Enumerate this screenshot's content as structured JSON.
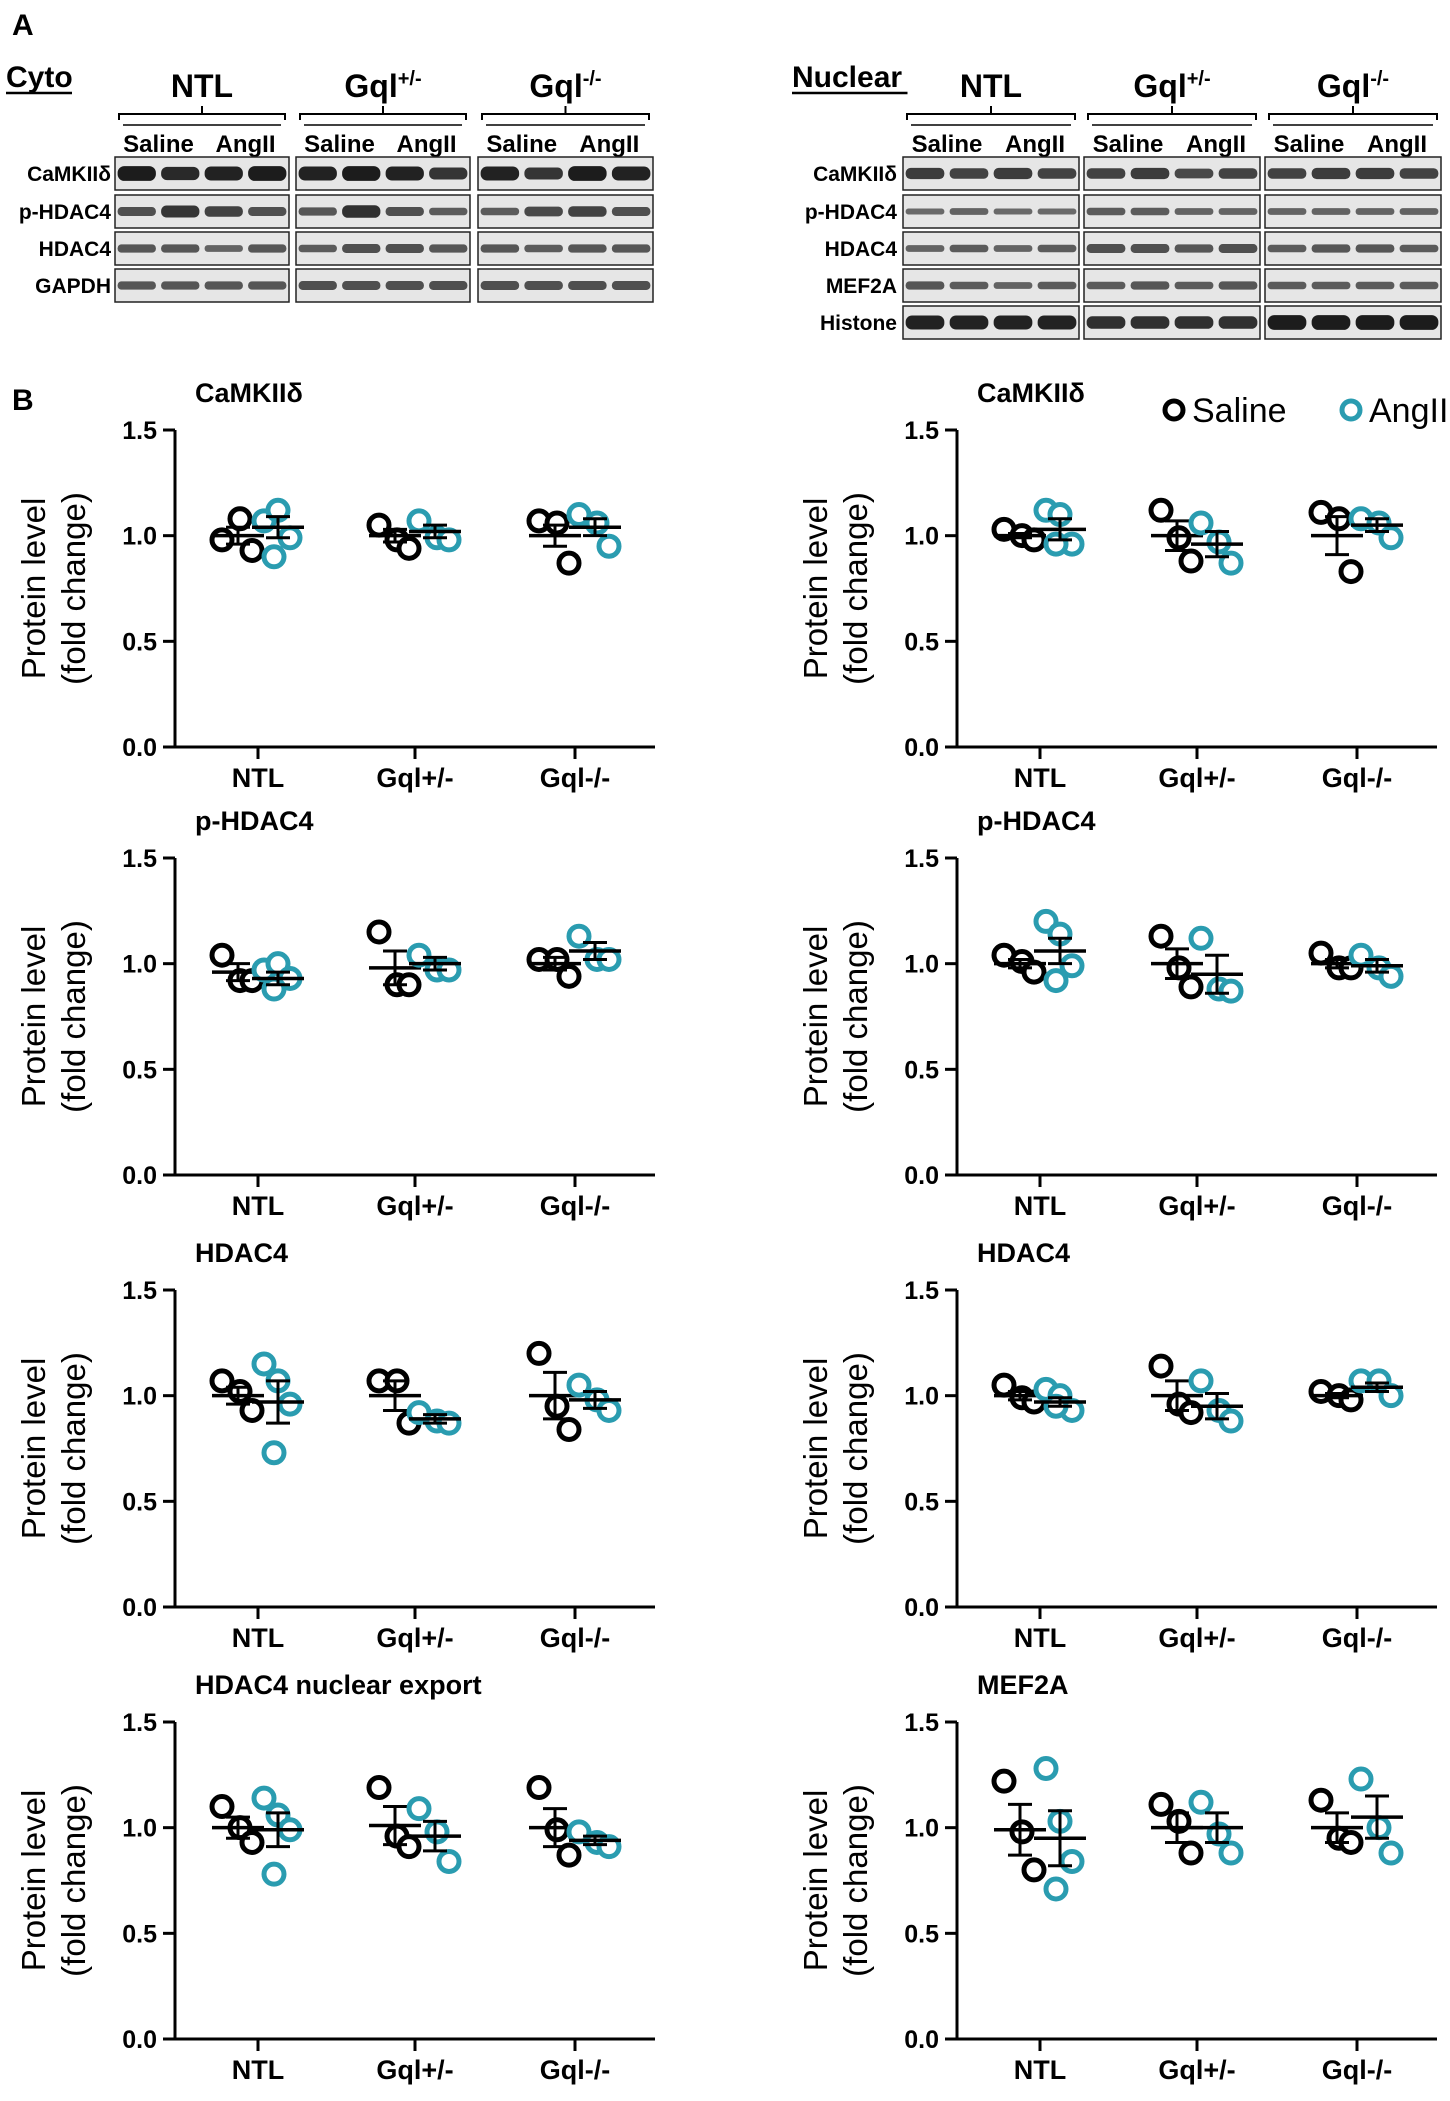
{
  "figure": {
    "panel_a_label": "A",
    "panel_b_label": "B",
    "colors": {
      "saline": "#000000",
      "angii": "#2a9cb0"
    }
  },
  "blots": [
    {
      "section": "Cyto",
      "groups": [
        {
          "name": "NTL",
          "sup": ""
        },
        {
          "name": "Gql",
          "sup": "+/-"
        },
        {
          "name": "Gql",
          "sup": "-/-"
        }
      ],
      "lane_labels": [
        "Saline",
        "AngII"
      ],
      "rows": [
        "CaMKIIδ",
        "p-HDAC4",
        "HDAC4",
        "GAPDH"
      ]
    },
    {
      "section": "Nuclear",
      "groups": [
        {
          "name": "NTL",
          "sup": ""
        },
        {
          "name": "Gql",
          "sup": "+/-"
        },
        {
          "name": "Gql",
          "sup": "-/-"
        }
      ],
      "lane_labels": [
        "Saline",
        "AngII"
      ],
      "rows": [
        "CaMKIIδ",
        "p-HDAC4",
        "HDAC4",
        "MEF2A",
        "Histone"
      ]
    }
  ],
  "legend": [
    {
      "label": "Saline",
      "color": "#000000"
    },
    {
      "label": "AngII",
      "color": "#2a9cb0"
    }
  ],
  "chart_data": [
    {
      "type": "scatter",
      "fraction": "cyto",
      "title": "CaMKIIδ",
      "ylabel": [
        "Protein level",
        "(fold change)"
      ],
      "ylim": [
        0,
        1.5
      ],
      "yticks": [
        "0.0",
        "0.5",
        "1.0",
        "1.5"
      ],
      "categories": [
        "NTL",
        "Gql+/-",
        "Gql-/-"
      ],
      "series": [
        {
          "name": "Saline",
          "groups": [
            {
              "points": [
                0.98,
                1.08,
                0.93
              ],
              "mean": 1.0,
              "sem": 0.04
            },
            {
              "points": [
                1.05,
                0.98,
                0.94
              ],
              "mean": 1.0,
              "sem": 0.03
            },
            {
              "points": [
                1.07,
                1.06,
                0.87
              ],
              "mean": 1.0,
              "sem": 0.05
            }
          ]
        },
        {
          "name": "AngII",
          "groups": [
            {
              "points": [
                1.07,
                1.12,
                0.99,
                0.9
              ],
              "mean": 1.04,
              "sem": 0.05
            },
            {
              "points": [
                1.07,
                0.99,
                0.98
              ],
              "mean": 1.02,
              "sem": 0.03
            },
            {
              "points": [
                1.1,
                1.06,
                0.95
              ],
              "mean": 1.04,
              "sem": 0.04
            }
          ]
        }
      ]
    },
    {
      "type": "scatter",
      "fraction": "nuclear",
      "title": "CaMKIIδ",
      "ylabel": [
        "Protein level",
        "(fold change)"
      ],
      "ylim": [
        0,
        1.5
      ],
      "yticks": [
        "0.0",
        "0.5",
        "1.0",
        "1.5"
      ],
      "categories": [
        "NTL",
        "Gql+/-",
        "Gql-/-"
      ],
      "series": [
        {
          "name": "Saline",
          "groups": [
            {
              "points": [
                1.03,
                1.0,
                0.98
              ],
              "mean": 1.0,
              "sem": 0.01
            },
            {
              "points": [
                1.12,
                0.99,
                0.88
              ],
              "mean": 1.0,
              "sem": 0.07
            },
            {
              "points": [
                1.11,
                1.08,
                0.83
              ],
              "mean": 1.0,
              "sem": 0.09
            }
          ]
        },
        {
          "name": "AngII",
          "groups": [
            {
              "points": [
                1.12,
                1.1,
                0.96,
                0.96
              ],
              "mean": 1.03,
              "sem": 0.05
            },
            {
              "points": [
                1.06,
                0.97,
                0.87
              ],
              "mean": 0.96,
              "sem": 0.06
            },
            {
              "points": [
                1.08,
                1.06,
                0.99
              ],
              "mean": 1.05,
              "sem": 0.03
            }
          ]
        }
      ]
    },
    {
      "type": "scatter",
      "fraction": "cyto",
      "title": "p-HDAC4",
      "ylabel": [
        "Protein level",
        "(fold change)"
      ],
      "ylim": [
        0,
        1.5
      ],
      "yticks": [
        "0.0",
        "0.5",
        "1.0",
        "1.5"
      ],
      "categories": [
        "NTL",
        "Gql+/-",
        "Gql-/-"
      ],
      "series": [
        {
          "name": "Saline",
          "groups": [
            {
              "points": [
                1.04,
                0.92,
                0.92
              ],
              "mean": 0.96,
              "sem": 0.04
            },
            {
              "points": [
                1.15,
                0.9,
                0.9
              ],
              "mean": 0.98,
              "sem": 0.08
            },
            {
              "points": [
                1.02,
                1.02,
                0.94
              ],
              "mean": 1.0,
              "sem": 0.03
            }
          ]
        },
        {
          "name": "AngII",
          "groups": [
            {
              "points": [
                0.97,
                1.0,
                0.93,
                0.88
              ],
              "mean": 0.93,
              "sem": 0.03
            },
            {
              "points": [
                1.04,
                0.97,
                0.97
              ],
              "mean": 1.0,
              "sem": 0.03
            },
            {
              "points": [
                1.13,
                1.02,
                1.02
              ],
              "mean": 1.06,
              "sem": 0.04
            }
          ]
        }
      ]
    },
    {
      "type": "scatter",
      "fraction": "nuclear",
      "title": "p-HDAC4",
      "ylabel": [
        "Protein level",
        "(fold change)"
      ],
      "ylim": [
        0,
        1.5
      ],
      "yticks": [
        "0.0",
        "0.5",
        "1.0",
        "1.5"
      ],
      "categories": [
        "NTL",
        "Gql+/-",
        "Gql-/-"
      ],
      "series": [
        {
          "name": "Saline",
          "groups": [
            {
              "points": [
                1.04,
                1.01,
                0.96
              ],
              "mean": 1.0,
              "sem": 0.02
            },
            {
              "points": [
                1.13,
                0.98,
                0.89
              ],
              "mean": 1.0,
              "sem": 0.07
            },
            {
              "points": [
                1.05,
                0.98,
                0.98
              ],
              "mean": 1.0,
              "sem": 0.02
            }
          ]
        },
        {
          "name": "AngII",
          "groups": [
            {
              "points": [
                1.2,
                1.14,
                0.99,
                0.92
              ],
              "mean": 1.06,
              "sem": 0.06
            },
            {
              "points": [
                1.12,
                0.88,
                0.87
              ],
              "mean": 0.95,
              "sem": 0.09
            },
            {
              "points": [
                1.04,
                0.98,
                0.94
              ],
              "mean": 0.99,
              "sem": 0.03
            }
          ]
        }
      ]
    },
    {
      "type": "scatter",
      "fraction": "cyto",
      "title": "HDAC4",
      "ylabel": [
        "Protein level",
        "(fold change)"
      ],
      "ylim": [
        0,
        1.5
      ],
      "yticks": [
        "0.0",
        "0.5",
        "1.0",
        "1.5"
      ],
      "categories": [
        "NTL",
        "Gql+/-",
        "Gql-/-"
      ],
      "series": [
        {
          "name": "Saline",
          "groups": [
            {
              "points": [
                1.07,
                1.02,
                0.93
              ],
              "mean": 1.0,
              "sem": 0.04
            },
            {
              "points": [
                1.07,
                1.07,
                0.87
              ],
              "mean": 1.0,
              "sem": 0.07
            },
            {
              "points": [
                1.2,
                0.95,
                0.84
              ],
              "mean": 1.0,
              "sem": 0.11
            }
          ]
        },
        {
          "name": "AngII",
          "groups": [
            {
              "points": [
                1.15,
                1.07,
                0.96,
                0.73
              ],
              "mean": 0.97,
              "sem": 0.1
            },
            {
              "points": [
                0.92,
                0.88,
                0.87
              ],
              "mean": 0.89,
              "sem": 0.02
            },
            {
              "points": [
                1.05,
                0.98,
                0.93
              ],
              "mean": 0.98,
              "sem": 0.04
            }
          ]
        }
      ]
    },
    {
      "type": "scatter",
      "fraction": "nuclear",
      "title": "HDAC4",
      "ylabel": [
        "Protein level",
        "(fold change)"
      ],
      "ylim": [
        0,
        1.5
      ],
      "yticks": [
        "0.0",
        "0.5",
        "1.0",
        "1.5"
      ],
      "categories": [
        "NTL",
        "Gql+/-",
        "Gql-/-"
      ],
      "series": [
        {
          "name": "Saline",
          "groups": [
            {
              "points": [
                1.05,
                0.99,
                0.97
              ],
              "mean": 1.0,
              "sem": 0.02
            },
            {
              "points": [
                1.14,
                0.96,
                0.92
              ],
              "mean": 1.0,
              "sem": 0.07
            },
            {
              "points": [
                1.02,
                1.0,
                0.98
              ],
              "mean": 1.0,
              "sem": 0.01
            }
          ]
        },
        {
          "name": "AngII",
          "groups": [
            {
              "points": [
                1.03,
                1.0,
                0.93,
                0.95
              ],
              "mean": 0.97,
              "sem": 0.02
            },
            {
              "points": [
                1.07,
                0.93,
                0.88
              ],
              "mean": 0.95,
              "sem": 0.06
            },
            {
              "points": [
                1.07,
                1.07,
                1.0
              ],
              "mean": 1.04,
              "sem": 0.02
            }
          ]
        }
      ]
    },
    {
      "type": "scatter",
      "fraction": "cyto",
      "title": "HDAC4 nuclear export",
      "ylabel": [
        "Protein level",
        "(fold change)"
      ],
      "ylim": [
        0,
        1.5
      ],
      "yticks": [
        "0.0",
        "0.5",
        "1.0",
        "1.5"
      ],
      "categories": [
        "NTL",
        "Gql+/-",
        "Gql-/-"
      ],
      "series": [
        {
          "name": "Saline",
          "groups": [
            {
              "points": [
                1.1,
                1.0,
                0.93
              ],
              "mean": 1.0,
              "sem": 0.05
            },
            {
              "points": [
                1.19,
                0.96,
                0.91
              ],
              "mean": 1.01,
              "sem": 0.09
            },
            {
              "points": [
                1.19,
                0.99,
                0.87
              ],
              "mean": 1.0,
              "sem": 0.09
            }
          ]
        },
        {
          "name": "AngII",
          "groups": [
            {
              "points": [
                1.14,
                1.06,
                0.99,
                0.78
              ],
              "mean": 0.99,
              "sem": 0.08
            },
            {
              "points": [
                1.09,
                0.98,
                0.84
              ],
              "mean": 0.96,
              "sem": 0.07
            },
            {
              "points": [
                0.98,
                0.93,
                0.91
              ],
              "mean": 0.94,
              "sem": 0.02
            }
          ]
        }
      ]
    },
    {
      "type": "scatter",
      "fraction": "nuclear",
      "title": "MEF2A",
      "ylabel": [
        "Protein level",
        "(fold change)"
      ],
      "ylim": [
        0,
        1.5
      ],
      "yticks": [
        "0.0",
        "0.5",
        "1.0",
        "1.5"
      ],
      "categories": [
        "NTL",
        "Gql+/-",
        "Gql-/-"
      ],
      "series": [
        {
          "name": "Saline",
          "groups": [
            {
              "points": [
                1.22,
                0.98,
                0.8
              ],
              "mean": 0.99,
              "sem": 0.12
            },
            {
              "points": [
                1.11,
                1.03,
                0.88
              ],
              "mean": 1.0,
              "sem": 0.07
            },
            {
              "points": [
                1.13,
                0.95,
                0.93
              ],
              "mean": 1.0,
              "sem": 0.07
            }
          ]
        },
        {
          "name": "AngII",
          "groups": [
            {
              "points": [
                1.28,
                1.03,
                0.84,
                0.71
              ],
              "mean": 0.95,
              "sem": 0.13
            },
            {
              "points": [
                1.12,
                0.97,
                0.88
              ],
              "mean": 1.0,
              "sem": 0.07
            },
            {
              "points": [
                1.23,
                1.0,
                0.88
              ],
              "mean": 1.05,
              "sem": 0.1
            }
          ]
        }
      ]
    }
  ]
}
